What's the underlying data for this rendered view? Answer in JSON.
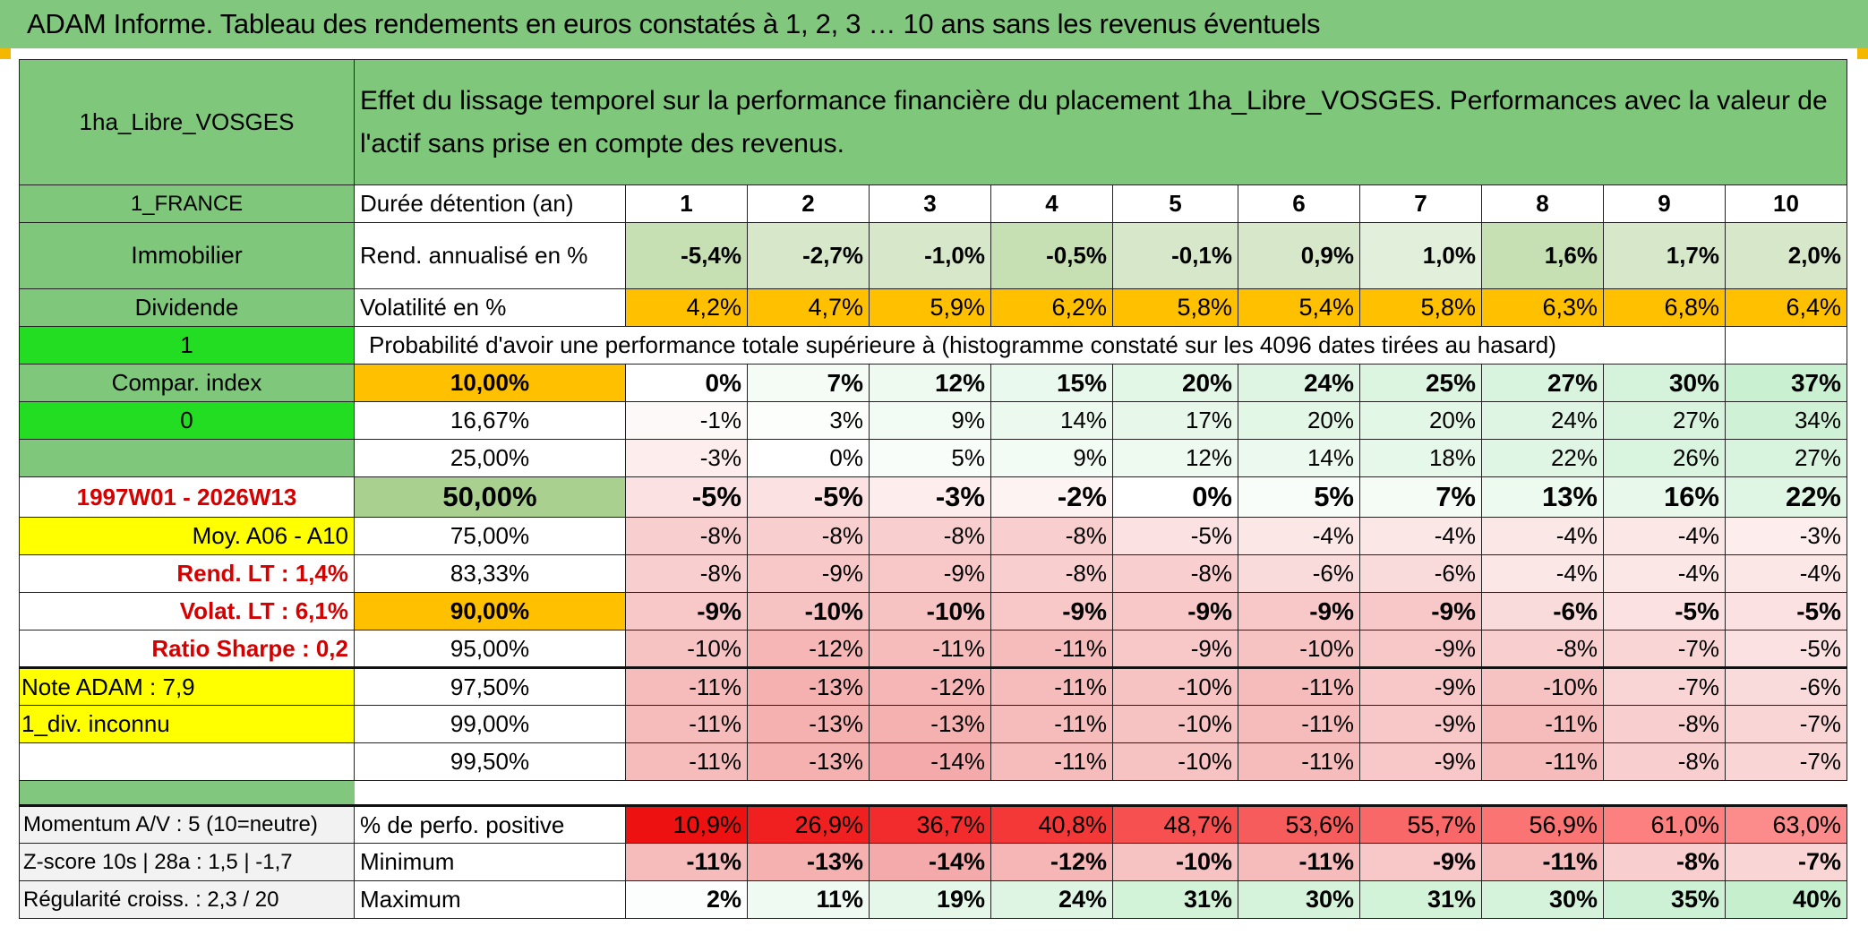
{
  "title": "ADAM Informe. Tableau des rendements en euros constatés à 1, 2, 3 … 10 ans sans les revenus éventuels",
  "left_panel": {
    "fund_name": "1ha_Libre_VOSGES",
    "country": "1_FRANCE",
    "asset_class": "Immobilier",
    "dividend_label": "Dividende",
    "dividend_value": "1",
    "compar_index_label": "Compar. index",
    "compar_index_value": "0",
    "period": "1997W01 - 2026W13",
    "moyenne": "Moy. A06 - A10",
    "rend_lt": "Rend. LT :   1,4%",
    "volat_lt": "Volat. LT :   6,1%",
    "ratio_sharpe": "Ratio Sharpe :    0,2",
    "note_adam": "Note ADAM : 7,9",
    "div_status": "1_div. inconnu",
    "momentum": "Momentum A/V : 5 (10=neutre)",
    "zscore": "Z-score 10s | 28a : 1,5 | -1,7",
    "regularite": "Régularité croiss. : 2,3 / 20"
  },
  "description": "Effet du lissage temporel sur la performance financière du placement 1ha_Libre_VOSGES. Performances avec la valeur de l'actif sans prise en compte des revenus.",
  "header_row": {
    "label": "Durée détention (an)",
    "years": [
      "1",
      "2",
      "3",
      "4",
      "5",
      "6",
      "7",
      "8",
      "9",
      "10"
    ]
  },
  "rend_row": {
    "label": "Rend. annualisé en %",
    "values": [
      "-5,4%",
      "-2,7%",
      "-1,0%",
      "-0,5%",
      "-0,1%",
      "0,9%",
      "1,0%",
      "1,6%",
      "1,7%",
      "2,0%"
    ]
  },
  "vol_row": {
    "label": "Volatilité en %",
    "values": [
      "4,2%",
      "4,7%",
      "5,9%",
      "6,2%",
      "5,8%",
      "5,4%",
      "5,8%",
      "6,3%",
      "6,8%",
      "6,4%"
    ]
  },
  "proba_caption": "Probabilité d'avoir une performance totale supérieure à (histogramme constaté sur les 4096 dates tirées au hasard)",
  "histogram": [
    {
      "p": "10,00%",
      "v": [
        "0%",
        "7%",
        "12%",
        "15%",
        "20%",
        "24%",
        "25%",
        "27%",
        "30%",
        "37%"
      ]
    },
    {
      "p": "16,67%",
      "v": [
        "-1%",
        "3%",
        "9%",
        "14%",
        "17%",
        "20%",
        "20%",
        "24%",
        "27%",
        "34%"
      ]
    },
    {
      "p": "25,00%",
      "v": [
        "-3%",
        "0%",
        "5%",
        "9%",
        "12%",
        "14%",
        "18%",
        "22%",
        "26%",
        "27%"
      ]
    },
    {
      "p": "50,00%",
      "v": [
        "-5%",
        "-5%",
        "-3%",
        "-2%",
        "0%",
        "5%",
        "7%",
        "13%",
        "16%",
        "22%"
      ]
    },
    {
      "p": "75,00%",
      "v": [
        "-8%",
        "-8%",
        "-8%",
        "-8%",
        "-5%",
        "-4%",
        "-4%",
        "-4%",
        "-4%",
        "-3%"
      ]
    },
    {
      "p": "83,33%",
      "v": [
        "-8%",
        "-9%",
        "-9%",
        "-8%",
        "-8%",
        "-6%",
        "-6%",
        "-4%",
        "-4%",
        "-4%"
      ]
    },
    {
      "p": "90,00%",
      "v": [
        "-9%",
        "-10%",
        "-10%",
        "-9%",
        "-9%",
        "-9%",
        "-9%",
        "-6%",
        "-5%",
        "-5%"
      ]
    },
    {
      "p": "95,00%",
      "v": [
        "-10%",
        "-12%",
        "-11%",
        "-11%",
        "-9%",
        "-10%",
        "-9%",
        "-8%",
        "-7%",
        "-5%"
      ]
    },
    {
      "p": "97,50%",
      "v": [
        "-11%",
        "-13%",
        "-12%",
        "-11%",
        "-10%",
        "-11%",
        "-9%",
        "-10%",
        "-7%",
        "-6%"
      ]
    },
    {
      "p": "99,00%",
      "v": [
        "-11%",
        "-13%",
        "-13%",
        "-11%",
        "-10%",
        "-11%",
        "-9%",
        "-11%",
        "-8%",
        "-7%"
      ]
    },
    {
      "p": "99,50%",
      "v": [
        "-11%",
        "-13%",
        "-14%",
        "-11%",
        "-10%",
        "-11%",
        "-9%",
        "-11%",
        "-8%",
        "-7%"
      ]
    }
  ],
  "positive_row": {
    "label": "% de perfo. positive",
    "values": [
      "10,9%",
      "26,9%",
      "36,7%",
      "40,8%",
      "48,7%",
      "53,6%",
      "55,7%",
      "56,9%",
      "61,0%",
      "63,0%"
    ]
  },
  "min_row": {
    "label": "Minimum",
    "values": [
      "-11%",
      "-13%",
      "-14%",
      "-12%",
      "-10%",
      "-11%",
      "-9%",
      "-11%",
      "-8%",
      "-7%"
    ]
  },
  "max_row": {
    "label": "Maximum",
    "values": [
      "2%",
      "11%",
      "19%",
      "24%",
      "31%",
      "30%",
      "31%",
      "30%",
      "35%",
      "40%"
    ]
  },
  "colors": {
    "title_green": "#82c77e",
    "label_green": "#7ec77b",
    "bright_green": "#22dd22",
    "yellow": "#ffff00",
    "orange": "#ffc000",
    "rend_green": "#c6e0b4",
    "median_green": "#a9d08e",
    "red_text": "#d50000"
  }
}
